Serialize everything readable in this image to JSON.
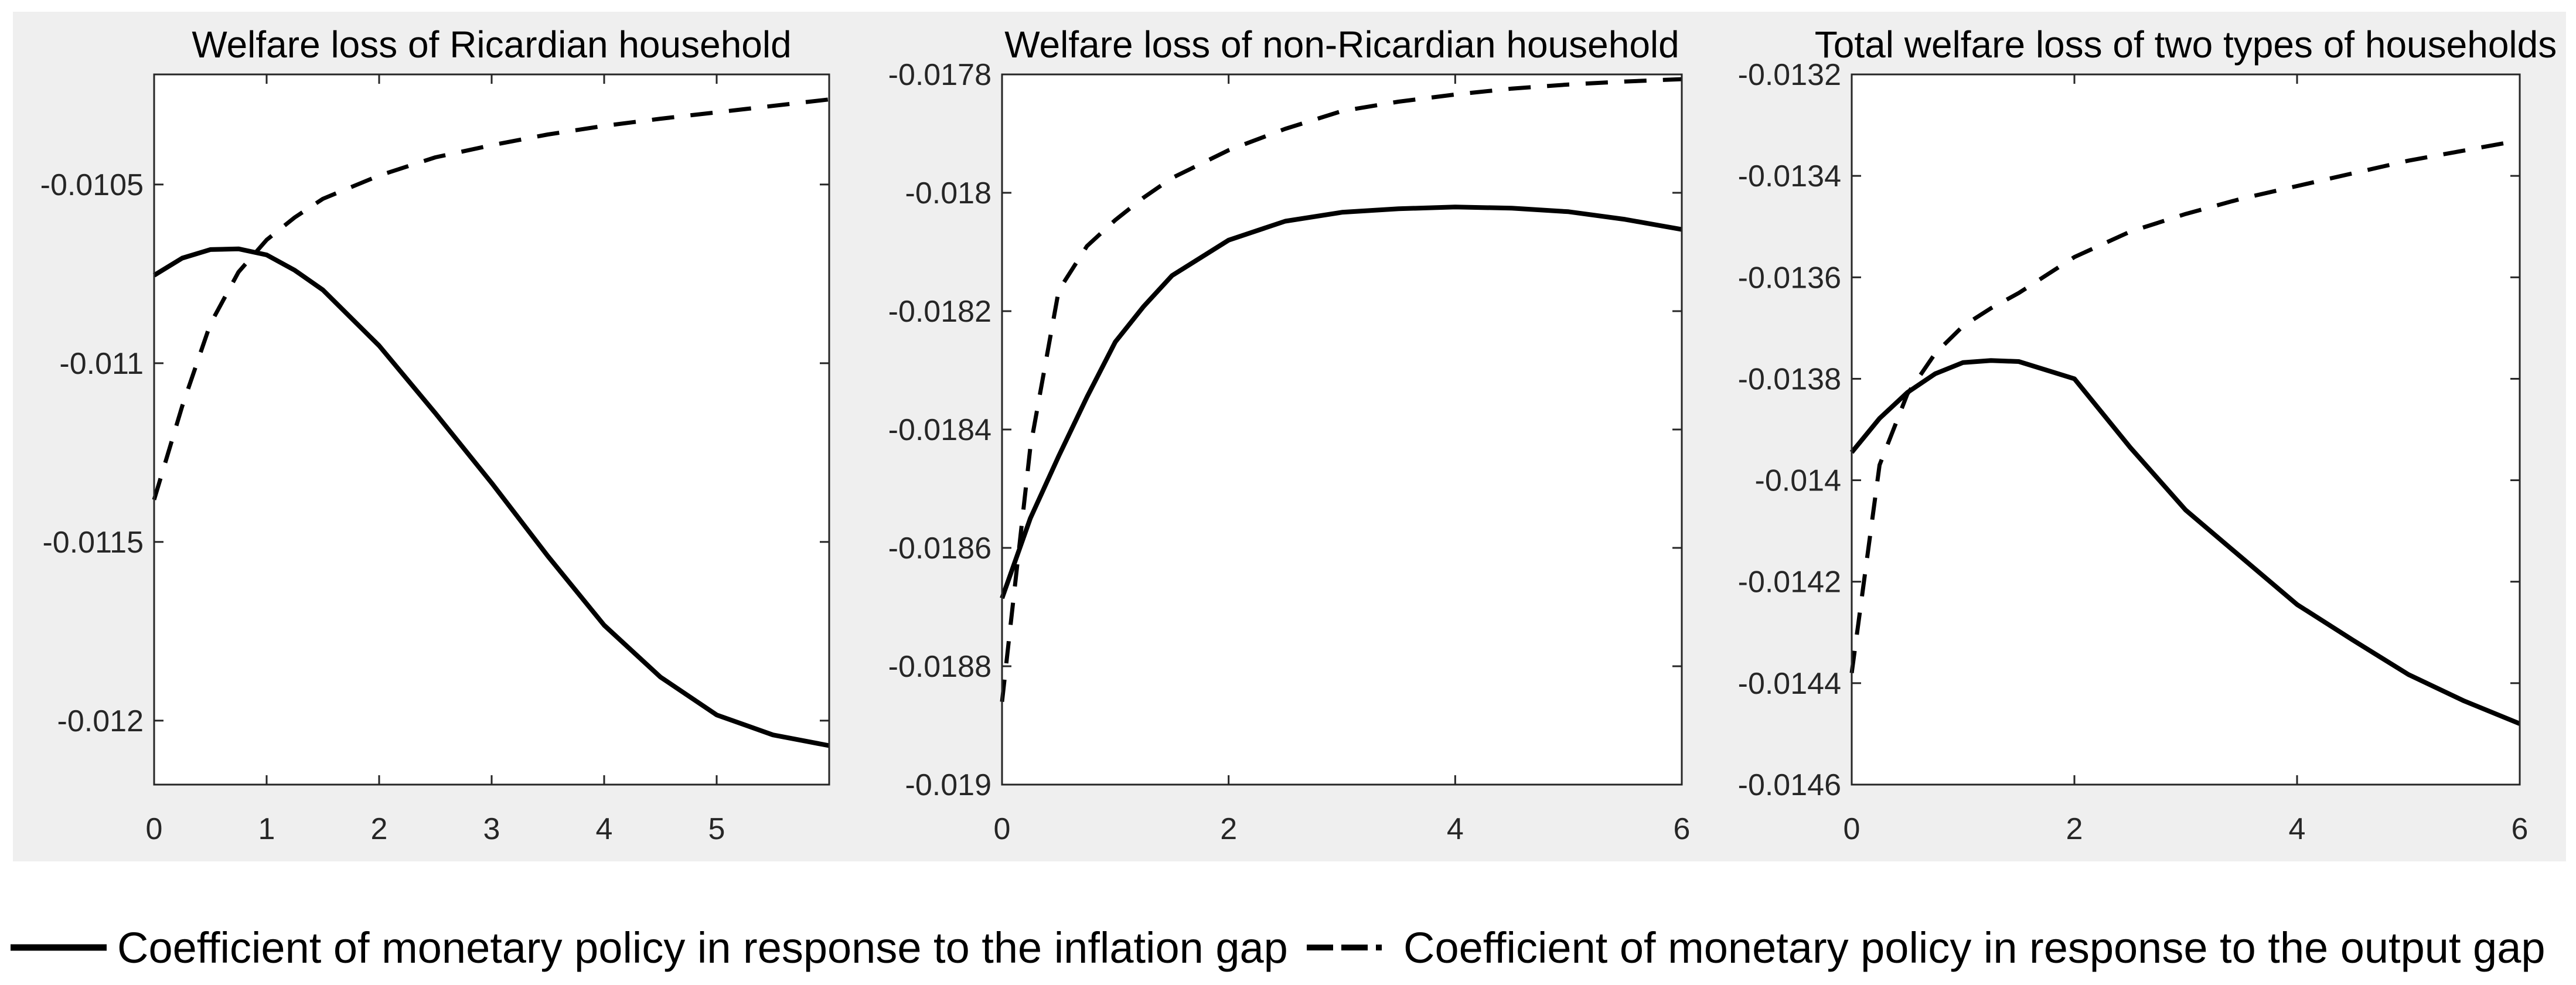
{
  "figure": {
    "colors": {
      "background": "#ffffff",
      "figure_area": "#efefef",
      "plot_background": "#ffffff",
      "axis": "#262626",
      "line": "#000000"
    }
  },
  "legend": {
    "items": [
      {
        "style": "solid",
        "label": "Coefficient of monetary policy in response to the inflation gap"
      },
      {
        "style": "dashed",
        "label": "Coefficient of monetary policy in response to the output gap"
      }
    ]
  },
  "chart_data": [
    {
      "type": "line",
      "title": "Welfare loss of Ricardian household",
      "xlim": [
        0,
        6
      ],
      "ylim": [
        -0.012179,
        -0.010192
      ],
      "grid": false,
      "xtick_values": [
        0,
        1,
        2,
        3,
        4,
        5
      ],
      "xtick_labels": [
        "0",
        "1",
        "2",
        "3",
        "4",
        "5"
      ],
      "ytick_values": [
        -0.0105,
        -0.011,
        -0.0115,
        -0.012
      ],
      "ytick_labels": [
        "-0.0105",
        "-0.011",
        "-0.0115",
        "-0.012"
      ],
      "series": [
        {
          "name": "Coefficient of monetary policy in response to the inflation gap",
          "style": "solid",
          "x": [
            0,
            0.25,
            0.5,
            0.75,
            1,
            1.25,
            1.5,
            2,
            2.5,
            3,
            3.5,
            4,
            4.5,
            5,
            5.5,
            6
          ],
          "y": [
            -0.010754,
            -0.010706,
            -0.010682,
            -0.01068,
            -0.010697,
            -0.01074,
            -0.010795,
            -0.010951,
            -0.01114,
            -0.011335,
            -0.01154,
            -0.011733,
            -0.011878,
            -0.011984,
            -0.01204,
            -0.01207
          ]
        },
        {
          "name": "Coefficient of monetary policy in response to the output gap",
          "style": "dashed",
          "x": [
            0,
            0.25,
            0.5,
            0.75,
            1,
            1.25,
            1.5,
            2,
            2.5,
            3,
            3.5,
            4,
            4.5,
            5,
            5.5,
            6
          ],
          "y": [
            -0.011382,
            -0.01112,
            -0.01089,
            -0.010745,
            -0.010655,
            -0.010592,
            -0.01054,
            -0.010475,
            -0.010424,
            -0.01039,
            -0.01036,
            -0.010336,
            -0.010316,
            -0.010298,
            -0.01028,
            -0.010262
          ]
        }
      ]
    },
    {
      "type": "line",
      "title": "Welfare loss of non-Ricardian household",
      "xlim": [
        0,
        6
      ],
      "ylim": [
        -0.019,
        -0.0178
      ],
      "grid": false,
      "xtick_values": [
        0,
        2,
        4,
        6
      ],
      "xtick_labels": [
        "0",
        "2",
        "4",
        "6"
      ],
      "ytick_values": [
        -0.0178,
        -0.018,
        -0.0182,
        -0.0184,
        -0.0186,
        -0.0188,
        -0.019
      ],
      "ytick_labels": [
        "-0.0178",
        "-0.018",
        "-0.0182",
        "-0.0184",
        "-0.0186",
        "-0.0188",
        "-0.019"
      ],
      "series": [
        {
          "name": "Coefficient of monetary policy in response to the inflation gap",
          "style": "solid",
          "x": [
            0,
            0.25,
            0.5,
            0.75,
            1,
            1.25,
            1.5,
            2,
            2.5,
            3,
            3.5,
            4,
            4.5,
            5,
            5.5,
            6
          ],
          "y": [
            -0.018685,
            -0.01855,
            -0.018445,
            -0.018345,
            -0.018252,
            -0.018192,
            -0.01814,
            -0.01808,
            -0.018048,
            -0.018033,
            -0.018027,
            -0.018024,
            -0.018026,
            -0.018032,
            -0.018045,
            -0.018062
          ]
        },
        {
          "name": "Coefficient of monetary policy in response to the output gap",
          "style": "dashed",
          "x": [
            0,
            0.25,
            0.5,
            0.75,
            1,
            1.25,
            1.5,
            2,
            2.5,
            3,
            3.5,
            4,
            4.5,
            5,
            5.5,
            6
          ],
          "y": [
            -0.01886,
            -0.01843,
            -0.018165,
            -0.01809,
            -0.018046,
            -0.018008,
            -0.017975,
            -0.017928,
            -0.017892,
            -0.017862,
            -0.017846,
            -0.017834,
            -0.017824,
            -0.017817,
            -0.017812,
            -0.017808
          ]
        }
      ]
    },
    {
      "type": "line",
      "title": "Total welfare loss of two types of households",
      "xlim": [
        0,
        6
      ],
      "ylim": [
        -0.0146,
        -0.0132
      ],
      "grid": false,
      "xtick_values": [
        0,
        2,
        4,
        6
      ],
      "xtick_labels": [
        "0",
        "2",
        "4",
        "6"
      ],
      "ytick_values": [
        -0.0132,
        -0.0134,
        -0.0136,
        -0.0138,
        -0.014,
        -0.0142,
        -0.0144,
        -0.0146
      ],
      "ytick_labels": [
        "-0.0132",
        "-0.0134",
        "-0.0136",
        "-0.0138",
        "-0.014",
        "-0.0142",
        "-0.0144",
        "-0.0146"
      ],
      "series": [
        {
          "name": "Coefficient of monetary policy in response to the inflation gap",
          "style": "solid",
          "x": [
            0,
            0.25,
            0.5,
            0.75,
            1,
            1.25,
            1.5,
            2,
            2.5,
            3,
            3.5,
            4,
            4.5,
            5,
            5.5,
            6
          ],
          "y": [
            -0.013945,
            -0.013878,
            -0.013827,
            -0.01379,
            -0.013768,
            -0.013764,
            -0.013766,
            -0.0138,
            -0.013935,
            -0.014059,
            -0.014152,
            -0.014245,
            -0.014315,
            -0.014383,
            -0.014435,
            -0.01448
          ]
        },
        {
          "name": "Coefficient of monetary policy in response to the output gap",
          "style": "dashed",
          "x": [
            0,
            0.25,
            0.5,
            0.75,
            1,
            1.25,
            1.5,
            2,
            2.5,
            3,
            3.5,
            4,
            4.5,
            5,
            5.5,
            6
          ],
          "y": [
            -0.01438,
            -0.01397,
            -0.01383,
            -0.01375,
            -0.013696,
            -0.013661,
            -0.013631,
            -0.01356,
            -0.01351,
            -0.013475,
            -0.013445,
            -0.01342,
            -0.013395,
            -0.01337,
            -0.01335,
            -0.01333
          ]
        }
      ]
    }
  ]
}
